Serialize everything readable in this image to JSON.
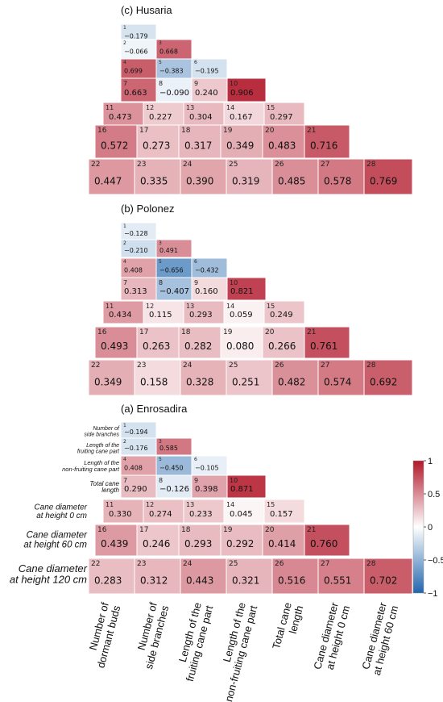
{
  "chart_data": {
    "type": "heatmap",
    "color_scale": {
      "min": -1,
      "max": 1,
      "low_color": "#2166ac",
      "mid_color": "#ffffff",
      "high_color": "#b2182b",
      "ticks": [
        "1",
        "0.5",
        "0",
        "−0.5",
        "−1"
      ]
    },
    "row_labels": [
      [
        "Number of",
        "side branches"
      ],
      [
        "Length of the",
        "fruiting cane part"
      ],
      [
        "Length of the",
        "non-fruiting cane part"
      ],
      [
        "Total cane",
        "length"
      ],
      [
        "Cane diameter",
        "at height 0 cm"
      ],
      [
        "Cane diameter",
        "at height 60 cm"
      ],
      [
        "Cane diameter",
        "at height 120 cm"
      ]
    ],
    "column_labels": [
      [
        "Number of",
        "dormant buds"
      ],
      [
        "Number of",
        "side branches"
      ],
      [
        "Length of the",
        "fruiting cane part"
      ],
      [
        "Length of the",
        "non-fruiting cane part"
      ],
      [
        "Total cane",
        "length"
      ],
      [
        "Cane diameter",
        "at height 0 cm"
      ],
      [
        "Cane diameter",
        "at height 60 cm"
      ]
    ],
    "panels": [
      {
        "title": "(c) Husaria",
        "ids": [
          [
            "1"
          ],
          [
            "2",
            "3"
          ],
          [
            "4",
            "5",
            "6"
          ],
          [
            "7",
            "8",
            "9",
            "10"
          ],
          [
            "11",
            "12",
            "13",
            "14",
            "15"
          ],
          [
            "16",
            "17",
            "18",
            "19",
            "20",
            "21"
          ],
          [
            "22",
            "23",
            "24",
            "25",
            "26",
            "27",
            "28"
          ]
        ],
        "labels": [
          [
            "−0.179"
          ],
          [
            "−0.066",
            "0.668"
          ],
          [
            "0.699",
            "−0.383",
            "−0.195"
          ],
          [
            "0.663",
            "−0.090",
            "0.240",
            "0.906"
          ],
          [
            "0.473",
            "0.227",
            "0.304",
            "0.167",
            "0.297"
          ],
          [
            "0.572",
            "0.273",
            "0.317",
            "0.349",
            "0.483",
            "0.716"
          ],
          [
            "0.447",
            "0.335",
            "0.390",
            "0.319",
            "0.485",
            "0.578",
            "0.769"
          ]
        ],
        "values": [
          [
            -0.179
          ],
          [
            -0.066,
            0.668
          ],
          [
            0.699,
            -0.383,
            -0.195
          ],
          [
            0.663,
            -0.09,
            0.24,
            0.906
          ],
          [
            0.473,
            0.227,
            0.304,
            0.167,
            0.297
          ],
          [
            0.572,
            0.273,
            0.317,
            0.349,
            0.483,
            0.716
          ],
          [
            0.447,
            0.335,
            0.39,
            0.319,
            0.485,
            0.578,
            0.769
          ]
        ]
      },
      {
        "title": "(b) Polonez",
        "ids": [
          [
            "1"
          ],
          [
            "2",
            "3"
          ],
          [
            "4",
            "5",
            "6"
          ],
          [
            "7",
            "8",
            "9",
            "10"
          ],
          [
            "11",
            "12",
            "13",
            "14",
            "15"
          ],
          [
            "16",
            "17",
            "18",
            "19",
            "20",
            "21"
          ],
          [
            "22",
            "23",
            "24",
            "25",
            "26",
            "27",
            "28"
          ]
        ],
        "labels": [
          [
            "−0.128"
          ],
          [
            "−0.210",
            "0.491"
          ],
          [
            "0.408",
            "−0.656",
            "−0.432"
          ],
          [
            "0.313",
            "−0.407",
            "0.160",
            "0.821"
          ],
          [
            "0.434",
            "0.115",
            "0.293",
            "0.059",
            "0.249"
          ],
          [
            "0.493",
            "0.263",
            "0.282",
            "0.080",
            "0.266",
            "0.761"
          ],
          [
            "0.349",
            "0.158",
            "0.328",
            "0.251",
            "0.482",
            "0.574",
            "0.692"
          ]
        ],
        "values": [
          [
            -0.128
          ],
          [
            -0.21,
            0.491
          ],
          [
            0.408,
            -0.656,
            -0.432
          ],
          [
            0.313,
            -0.407,
            0.16,
            0.821
          ],
          [
            0.434,
            0.115,
            0.293,
            0.059,
            0.249
          ],
          [
            0.493,
            0.263,
            0.282,
            0.08,
            0.266,
            0.761
          ],
          [
            0.349,
            0.158,
            0.328,
            0.251,
            0.482,
            0.574,
            0.692
          ]
        ]
      },
      {
        "title": "(a) Enrosadira",
        "ids": [
          [
            "1"
          ],
          [
            "2",
            "3"
          ],
          [
            "4",
            "5",
            "6"
          ],
          [
            "7",
            "8",
            "9",
            "10"
          ],
          [
            "11",
            "12",
            "13",
            "14",
            "15"
          ],
          [
            "16",
            "17",
            "18",
            "19",
            "20",
            "21"
          ],
          [
            "22",
            "23",
            "24",
            "25",
            "26",
            "27",
            "28"
          ]
        ],
        "labels": [
          [
            "−0.194"
          ],
          [
            "−0.176",
            "0.585"
          ],
          [
            "0.408",
            "−0.450",
            "−0.105"
          ],
          [
            "0.290",
            "−0.126",
            "0.398",
            "0.871"
          ],
          [
            "0.330",
            "0.274",
            "0.233",
            "0.045",
            "0.157"
          ],
          [
            "0.439",
            "0.246",
            "0.293",
            "0.292",
            "0.414",
            "0.760"
          ],
          [
            "0.283",
            "0.312",
            "0.443",
            "0.321",
            "0.516",
            "0.551",
            "0.702"
          ]
        ],
        "values": [
          [
            -0.194
          ],
          [
            -0.176,
            0.585
          ],
          [
            0.408,
            -0.45,
            -0.105
          ],
          [
            0.29,
            -0.126,
            0.398,
            0.871
          ],
          [
            0.33,
            0.274,
            0.233,
            0.045,
            0.157
          ],
          [
            0.439,
            0.246,
            0.293,
            0.292,
            0.414,
            0.76
          ],
          [
            0.283,
            0.312,
            0.443,
            0.321,
            0.516,
            0.551,
            0.702
          ]
        ]
      }
    ]
  }
}
